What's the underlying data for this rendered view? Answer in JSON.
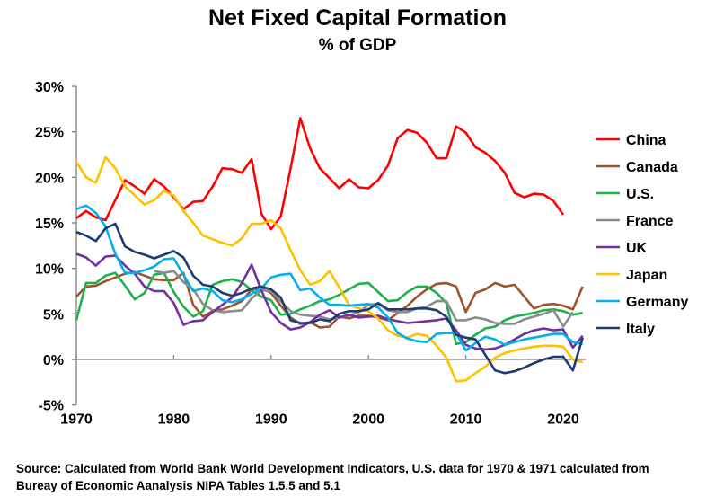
{
  "chart_data": {
    "type": "line",
    "title": "Net Fixed Capital Formation",
    "subtitle": "% of GDP",
    "xlabel": "",
    "ylabel": "",
    "xlim": [
      1970,
      2022
    ],
    "ylim": [
      -5,
      30
    ],
    "x_ticks": [
      "1970",
      "1980",
      "1990",
      "2000",
      "2010",
      "2020"
    ],
    "y_ticks": [
      "-5%",
      "0%",
      "5%",
      "10%",
      "15%",
      "20%",
      "25%",
      "30%"
    ],
    "grid": false,
    "legend": "right",
    "series": [
      {
        "name": "China",
        "color": "#FF0000",
        "start": 1970,
        "values": [
          15.5,
          16.3,
          15.6,
          15.3,
          17.5,
          19.7,
          19,
          18.2,
          19.8,
          19,
          17.8,
          16.5,
          17.3,
          17.4,
          19,
          21,
          20.9,
          20.5,
          22,
          16,
          14.3,
          15.7,
          21,
          26.5,
          23.2,
          21,
          19.9,
          18.8,
          19.8,
          18.9,
          18.8,
          19.7,
          21.3,
          24.3,
          25.2,
          24.9,
          23.8,
          22.1,
          22.1,
          25.6,
          24.9,
          23.3,
          22.7,
          21.8,
          20.5,
          18.3,
          17.8,
          18.2,
          18.1,
          17.4,
          15.9
        ]
      },
      {
        "name": "Canada",
        "color": "#A0522D",
        "start": 1970,
        "values": [
          6.9,
          8,
          8.1,
          8.6,
          9,
          9.4,
          9.6,
          9.2,
          8.8,
          8.7,
          8.7,
          9.5,
          6,
          4.7,
          5.3,
          5.5,
          5.9,
          6.4,
          7.7,
          7.8,
          7.3,
          5.9,
          4.6,
          3.9,
          4.1,
          3.5,
          3.6,
          4.7,
          4.5,
          4.8,
          4.8,
          4.6,
          4.3,
          5.1,
          5.9,
          6.9,
          7.7,
          8.3,
          8.4,
          8,
          5.2,
          7.3,
          7.7,
          8.4,
          8,
          8.2,
          6.9,
          5.6,
          6,
          6.1,
          5.9,
          5.5,
          8
        ]
      },
      {
        "name": "U.S.",
        "color": "#1DB14B",
        "start": 1970,
        "values": [
          4.3,
          8.4,
          8.4,
          9.2,
          9.5,
          8.1,
          6.6,
          7.3,
          9.3,
          9.5,
          7.4,
          5.8,
          4.7,
          5.3,
          8.2,
          8.6,
          8.8,
          8.5,
          7.6,
          6.9,
          6.5,
          4.9,
          5,
          5.5,
          5.9,
          6.4,
          6.6,
          7.1,
          7.7,
          8.3,
          8.4,
          7.4,
          6.4,
          6.5,
          7.4,
          8,
          8,
          7.3,
          6.2,
          1.7,
          1.9,
          2.7,
          3.4,
          3.6,
          4.3,
          4.7,
          4.9,
          5.1,
          5.4,
          5.5,
          5.3,
          4.9,
          5.1
        ]
      },
      {
        "name": "France",
        "color": "#8C8C8C",
        "start": 1978,
        "values": [
          9.7,
          9.5,
          9.7,
          8.5,
          7.7,
          6.1,
          5.4,
          5.2,
          5.3,
          5.4,
          6.7,
          7.6,
          7.5,
          6.4,
          5.3,
          4.9,
          4.8,
          4.7,
          4.4,
          4.6,
          4.8,
          5.2,
          6,
          6.1,
          5.4,
          5.2,
          5.2,
          5.6,
          5.8,
          6.4,
          6.4,
          4.3,
          4.3,
          4.6,
          4.4,
          4,
          3.9,
          3.9,
          4.4,
          4.7,
          5,
          5.4,
          3.6,
          5.2
        ]
      },
      {
        "name": "UK",
        "color": "#7030A0",
        "start": 1970,
        "values": [
          11.6,
          11.2,
          10.3,
          11.3,
          11.4,
          10.3,
          9.4,
          8,
          7.5,
          7.5,
          6.2,
          3.8,
          4.2,
          4.3,
          5.2,
          6,
          6.8,
          8.4,
          10.4,
          7.6,
          5.2,
          4,
          3.3,
          3.5,
          4.1,
          4.9,
          5.4,
          4.6,
          4.9,
          4.6,
          4.7,
          4.8,
          4.4,
          4.2,
          4,
          4.1,
          4.2,
          4.3,
          4.5,
          3.2,
          1.6,
          1.2,
          1.1,
          1.2,
          1.6,
          2.2,
          2.8,
          3.2,
          3.4,
          3.2,
          3.3,
          1.3,
          2.6
        ]
      },
      {
        "name": "Japan",
        "color": "#FFC000",
        "start": 1970,
        "values": [
          21.7,
          20,
          19.4,
          22.2,
          21,
          19,
          18,
          17,
          17.5,
          18.5,
          18,
          16.3,
          15,
          13.6,
          13.2,
          12.8,
          12.5,
          13.3,
          14.9,
          14.9,
          15.3,
          14.4,
          12,
          9.8,
          8.2,
          8.6,
          9.7,
          7.9,
          6,
          5.6,
          5.3,
          4.5,
          3.2,
          2.6,
          2.4,
          2.8,
          2.6,
          1.5,
          0.2,
          -2.4,
          -2.3,
          -1.5,
          -0.8,
          0.2,
          0.7,
          1,
          1.2,
          1.4,
          1.5,
          1.5,
          1.4,
          0,
          -0.3
        ]
      },
      {
        "name": "Germany",
        "color": "#00B0F0",
        "start": 1970,
        "values": [
          16.5,
          16.9,
          16.1,
          14.6,
          11.6,
          9.5,
          9.5,
          9.8,
          10.2,
          11,
          11.1,
          9.3,
          7.5,
          7.8,
          7.5,
          6.5,
          6.3,
          6.6,
          7.2,
          7.8,
          9,
          9.3,
          9.4,
          7.6,
          7.8,
          6.8,
          6,
          6,
          5.9,
          6,
          6.1,
          5.7,
          4.6,
          2.9,
          2.3,
          2,
          1.9,
          2.8,
          2.9,
          2.9,
          1,
          1.8,
          2.5,
          2.2,
          1.6,
          1.9,
          2.2,
          2.4,
          2.6,
          2.8,
          2.8,
          1.9,
          1.7
        ]
      },
      {
        "name": "Italy",
        "color": "#1F3B73",
        "start": 1970,
        "values": [
          14,
          13.6,
          13,
          14.4,
          14.9,
          12.4,
          11.8,
          11.5,
          11.1,
          11.5,
          11.9,
          11.2,
          9.2,
          8.2,
          8,
          7.3,
          7,
          7.3,
          7.8,
          8,
          7.7,
          6.8,
          4.3,
          4,
          4,
          4.4,
          4.2,
          5,
          5.3,
          5.3,
          5.5,
          6.2,
          5.5,
          5.5,
          5.5,
          5.6,
          5.6,
          5.4,
          4.7,
          2.7,
          2.4,
          2.2,
          0.5,
          -1.2,
          -1.5,
          -1.3,
          -0.9,
          -0.4,
          0,
          0.3,
          0.3,
          -1.2,
          2.4
        ]
      }
    ],
    "source": [
      "Source:  Calculated from World Bank World Development Indicators, U.S. data for 1970 & 1971 calculated from",
      "Bureay of Economic Aanalysis NIPA Tables 1.5.5 and 5.1"
    ]
  }
}
